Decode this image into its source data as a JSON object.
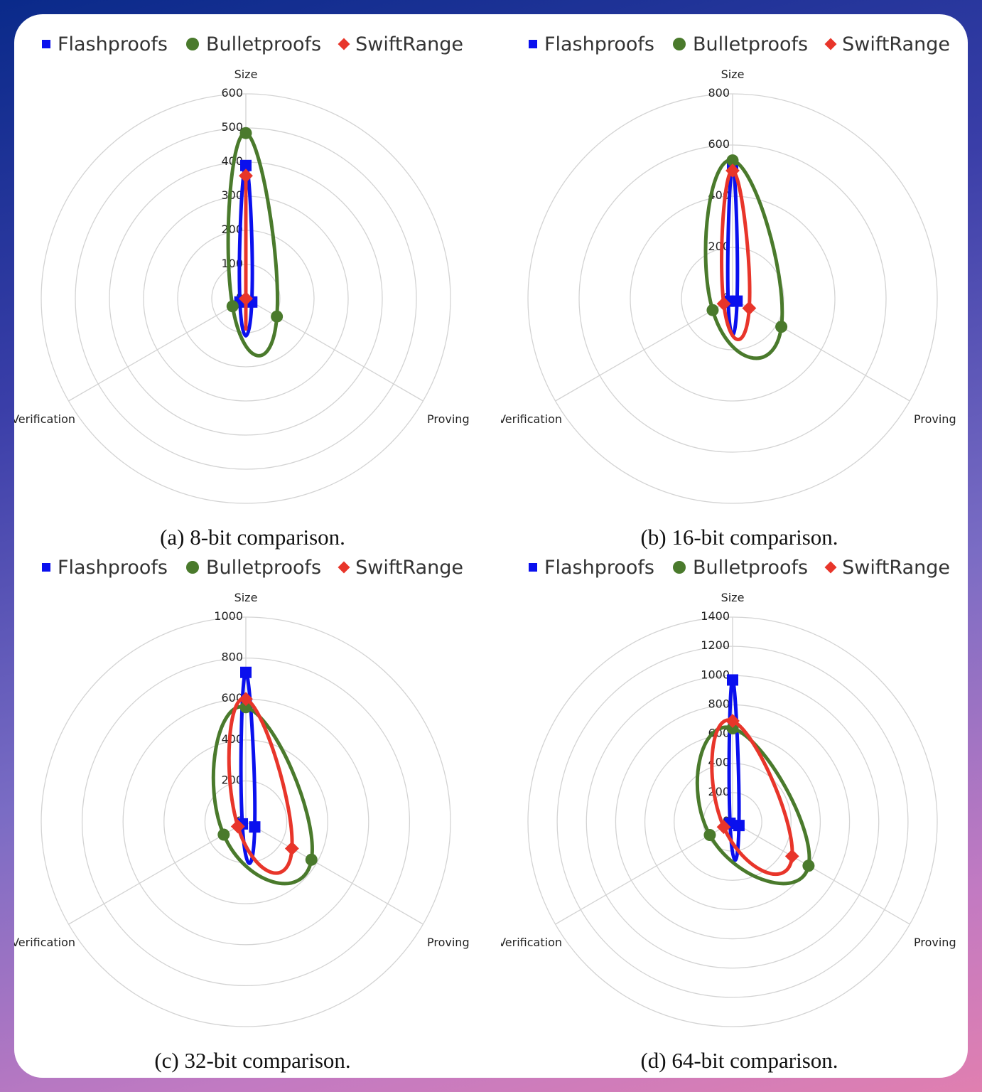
{
  "colors": {
    "flashproofs": "#0a10ee",
    "bulletproofs": "#4a7a2c",
    "swiftrange": "#e8352a",
    "grid": "#d3d3d3"
  },
  "chart_data": [
    {
      "type": "radar",
      "caption": "(a) 8-bit comparison.",
      "axes": [
        "Size",
        "Proving",
        "Verification"
      ],
      "ticks": [
        "0",
        "100",
        "200",
        "300",
        "400",
        "500",
        "600"
      ],
      "rmax": 600,
      "series": [
        {
          "name": "Flashproofs",
          "marker": "square",
          "values": [
            390,
            20,
            20
          ]
        },
        {
          "name": "Bulletproofs",
          "marker": "circle",
          "values": [
            485,
            105,
            45
          ]
        },
        {
          "name": "SwiftRange",
          "marker": "diamond",
          "values": [
            360,
            0,
            0
          ]
        }
      ]
    },
    {
      "type": "radar",
      "caption": "(b) 16-bit comparison.",
      "axes": [
        "Size",
        "Proving",
        "Verification"
      ],
      "ticks": [
        "0",
        "200",
        "400",
        "600",
        "800"
      ],
      "rmax": 800,
      "series": [
        {
          "name": "Flashproofs",
          "marker": "square",
          "values": [
            520,
            20,
            20
          ]
        },
        {
          "name": "Bulletproofs",
          "marker": "circle",
          "values": [
            540,
            220,
            90
          ]
        },
        {
          "name": "SwiftRange",
          "marker": "diamond",
          "values": [
            500,
            75,
            40
          ]
        }
      ]
    },
    {
      "type": "radar",
      "caption": "(c) 32-bit comparison.",
      "axes": [
        "Size",
        "Proving",
        "Verification"
      ],
      "ticks": [
        "0",
        "200",
        "400",
        "600",
        "800",
        "1000"
      ],
      "rmax": 1000,
      "series": [
        {
          "name": "Flashproofs",
          "marker": "square",
          "values": [
            730,
            50,
            20
          ]
        },
        {
          "name": "Bulletproofs",
          "marker": "circle",
          "values": [
            560,
            370,
            125
          ]
        },
        {
          "name": "SwiftRange",
          "marker": "diamond",
          "values": [
            600,
            260,
            45
          ]
        }
      ]
    },
    {
      "type": "radar",
      "caption": "(d) 64-bit comparison.",
      "axes": [
        "Size",
        "Proving",
        "Verification"
      ],
      "ticks": [
        "0",
        "200",
        "400",
        "600",
        "800",
        "1000",
        "1200",
        "1400"
      ],
      "rmax": 1400,
      "series": [
        {
          "name": "Flashproofs",
          "marker": "square",
          "values": [
            970,
            50,
            20
          ]
        },
        {
          "name": "Bulletproofs",
          "marker": "circle",
          "values": [
            640,
            600,
            180
          ]
        },
        {
          "name": "SwiftRange",
          "marker": "diamond",
          "values": [
            690,
            470,
            70
          ]
        }
      ]
    }
  ]
}
